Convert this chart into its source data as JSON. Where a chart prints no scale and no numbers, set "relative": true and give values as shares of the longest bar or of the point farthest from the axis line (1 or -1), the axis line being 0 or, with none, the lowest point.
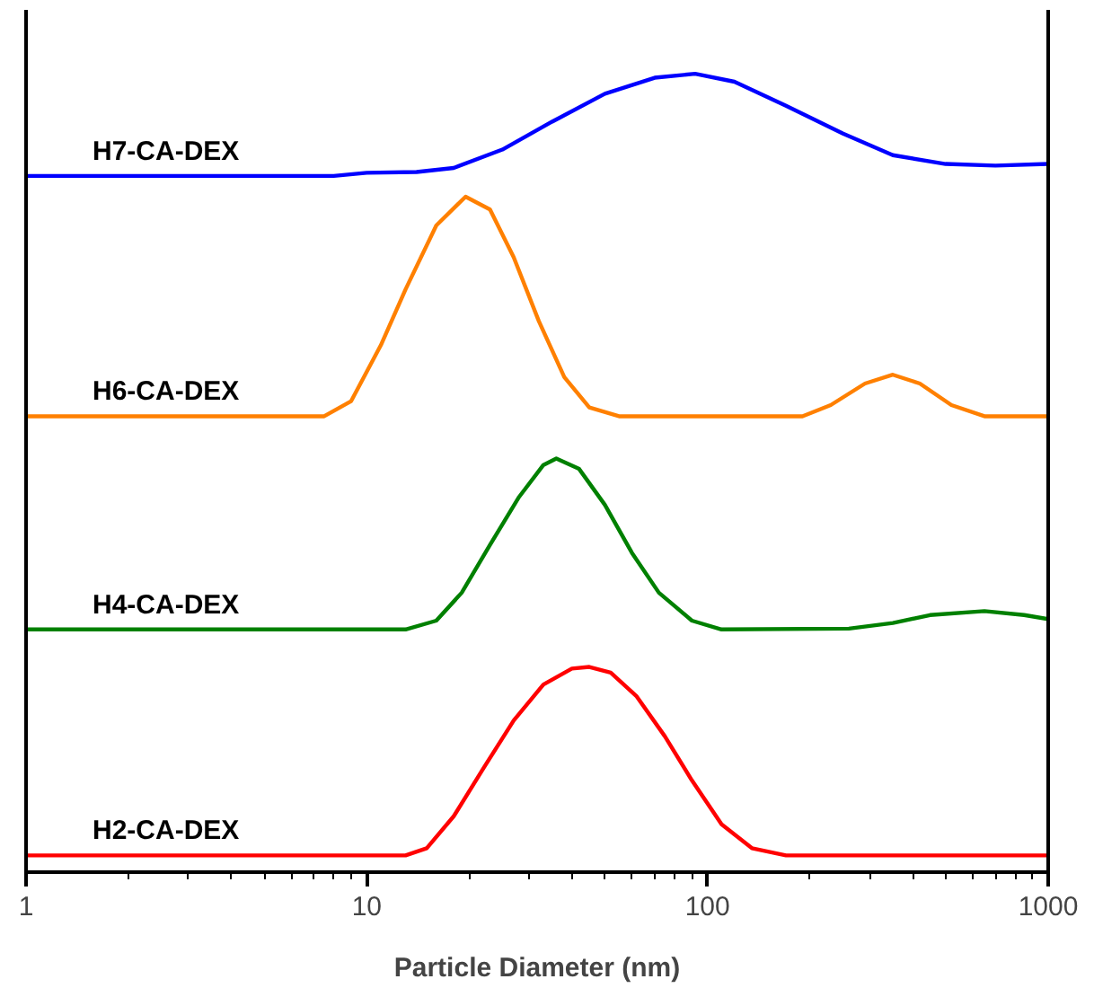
{
  "chart_data": {
    "type": "line",
    "relative": true,
    "xlabel": "Particle Diameter (nm)",
    "log": "x",
    "xlim": [
      1,
      1000
    ],
    "xticks": [
      1,
      10,
      100,
      1000
    ],
    "grid": false,
    "legend": false,
    "marker": "none",
    "line_style": "solid",
    "series": [
      {
        "name": "H7-CA-DEX",
        "color": "#0000ff",
        "x": [
          1,
          8,
          10,
          14,
          18,
          25,
          35,
          50,
          70,
          92,
          120,
          170,
          250,
          350,
          500,
          700,
          1000
        ],
        "values": [
          0.872,
          0.872,
          0.876,
          0.877,
          0.882,
          0.905,
          0.94,
          0.975,
          0.995,
          1.0,
          0.99,
          0.96,
          0.925,
          0.898,
          0.887,
          0.885,
          0.887
        ]
      },
      {
        "name": "H6-CA-DEX",
        "color": "#ff8000",
        "x": [
          1,
          7.5,
          9,
          11,
          13,
          16,
          19.5,
          23,
          27,
          32,
          38,
          45,
          55,
          190,
          230,
          290,
          350,
          420,
          520,
          650,
          1000
        ],
        "values": [
          0.571,
          0.571,
          0.59,
          0.66,
          0.73,
          0.81,
          0.846,
          0.83,
          0.77,
          0.69,
          0.62,
          0.582,
          0.571,
          0.571,
          0.585,
          0.612,
          0.623,
          0.612,
          0.585,
          0.571,
          0.571
        ]
      },
      {
        "name": "H4-CA-DEX",
        "color": "#008000",
        "x": [
          1,
          13,
          16,
          19,
          23,
          28,
          33,
          36,
          42,
          50,
          60,
          72,
          90,
          110,
          260,
          350,
          450,
          650,
          850,
          1000
        ],
        "values": [
          0.304,
          0.304,
          0.315,
          0.35,
          0.41,
          0.47,
          0.51,
          0.518,
          0.505,
          0.46,
          0.4,
          0.35,
          0.315,
          0.304,
          0.305,
          0.312,
          0.322,
          0.327,
          0.322,
          0.317
        ]
      },
      {
        "name": "H2-CA-DEX",
        "color": "#ff0000",
        "x": [
          1,
          13,
          15,
          18,
          22,
          27,
          33,
          40,
          45,
          52,
          62,
          75,
          90,
          110,
          135,
          170,
          1000
        ],
        "values": [
          0.021,
          0.021,
          0.03,
          0.07,
          0.13,
          0.19,
          0.235,
          0.255,
          0.257,
          0.25,
          0.22,
          0.17,
          0.115,
          0.06,
          0.03,
          0.021,
          0.021
        ]
      }
    ]
  }
}
